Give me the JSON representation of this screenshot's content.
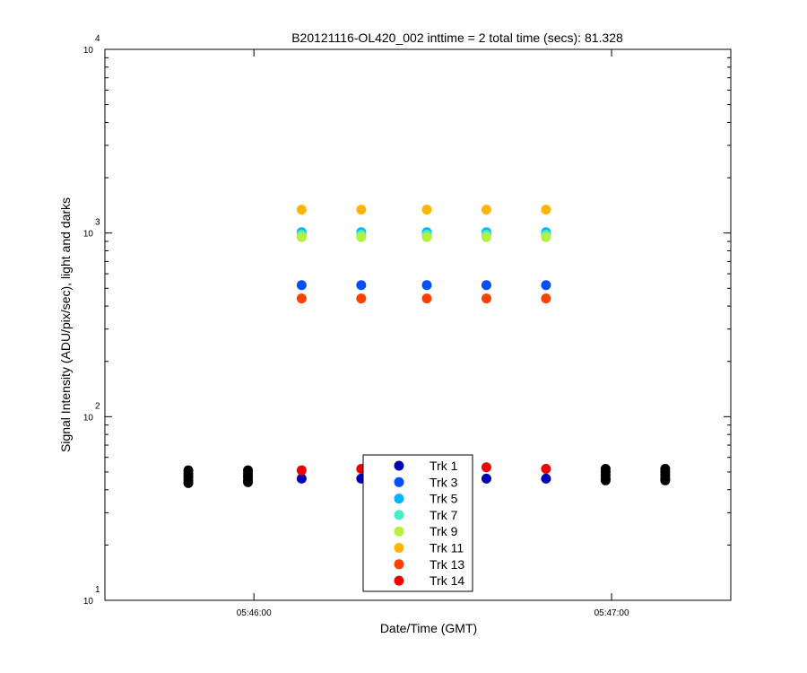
{
  "chart_data": {
    "type": "scatter",
    "title": "B20121116-OL420_002 inttime = 2 total time (secs): 81.328",
    "xlabel": "Date/Time (GMT)",
    "ylabel": "Signal Intensity (ADU/pix/sec), light and darks",
    "yscale": "log",
    "ylim": [
      10,
      10000
    ],
    "xlim": [
      "05:45:35",
      "05:47:20"
    ],
    "x_ticks": [
      "05:46:00",
      "05:47:00"
    ],
    "y_ticks": [
      {
        "base": "10",
        "exp": "1"
      },
      {
        "base": "10",
        "exp": "2"
      },
      {
        "base": "10",
        "exp": "3"
      },
      {
        "base": "10",
        "exp": "4"
      }
    ],
    "grid": false,
    "legend_position": "bottom-center",
    "series": [
      {
        "name": "Trk 1",
        "color": "#0000b4",
        "x": [
          "05:46:08",
          "05:46:18",
          "05:46:29",
          "05:46:39",
          "05:46:49"
        ],
        "y": [
          46,
          46,
          46,
          46,
          46
        ]
      },
      {
        "name": "Trk 3",
        "color": "#0050ff",
        "x": [
          "05:46:08",
          "05:46:18",
          "05:46:29",
          "05:46:39",
          "05:46:49"
        ],
        "y": [
          520,
          520,
          520,
          520,
          520
        ]
      },
      {
        "name": "Trk 5",
        "color": "#00b4ff",
        "x": [
          "05:46:08",
          "05:46:18",
          "05:46:29",
          "05:46:39",
          "05:46:49"
        ],
        "y": [
          1010,
          1010,
          1010,
          1010,
          1010
        ]
      },
      {
        "name": "Trk 7",
        "color": "#40f0c0",
        "x": [
          "05:46:08",
          "05:46:18",
          "05:46:29",
          "05:46:39",
          "05:46:49"
        ],
        "y": [
          980,
          980,
          980,
          980,
          980
        ]
      },
      {
        "name": "Trk 9",
        "color": "#b4f040",
        "x": [
          "05:46:08",
          "05:46:18",
          "05:46:29",
          "05:46:39",
          "05:46:49"
        ],
        "y": [
          950,
          950,
          950,
          950,
          950
        ]
      },
      {
        "name": "Trk 11",
        "color": "#ffb400",
        "x": [
          "05:46:08",
          "05:46:18",
          "05:46:29",
          "05:46:39",
          "05:46:49"
        ],
        "y": [
          1340,
          1340,
          1340,
          1340,
          1340
        ]
      },
      {
        "name": "Trk 13",
        "color": "#ff4000",
        "x": [
          "05:46:08",
          "05:46:18",
          "05:46:29",
          "05:46:39",
          "05:46:49"
        ],
        "y": [
          440,
          440,
          440,
          440,
          440
        ]
      },
      {
        "name": "Trk 14",
        "color": "#f00000",
        "x": [
          "05:46:08",
          "05:46:18",
          "05:46:29",
          "05:46:39",
          "05:46:49"
        ],
        "y": [
          51,
          52,
          52,
          53,
          52
        ]
      },
      {
        "name": "",
        "color": "#000000",
        "x": [
          "05:45:49",
          "05:45:49",
          "05:45:49",
          "05:45:49",
          "05:45:49",
          "05:45:59",
          "05:45:59",
          "05:45:59",
          "05:45:59",
          "05:45:59",
          "05:46:59",
          "05:46:59",
          "05:46:59",
          "05:46:59",
          "05:46:59",
          "05:47:09",
          "05:47:09",
          "05:47:09",
          "05:47:09",
          "05:47:09"
        ],
        "y": [
          51,
          49,
          47,
          45,
          43.5,
          51,
          49,
          47,
          45,
          44,
          52,
          50,
          48,
          46,
          45,
          52,
          50,
          48,
          46,
          45
        ]
      }
    ]
  }
}
